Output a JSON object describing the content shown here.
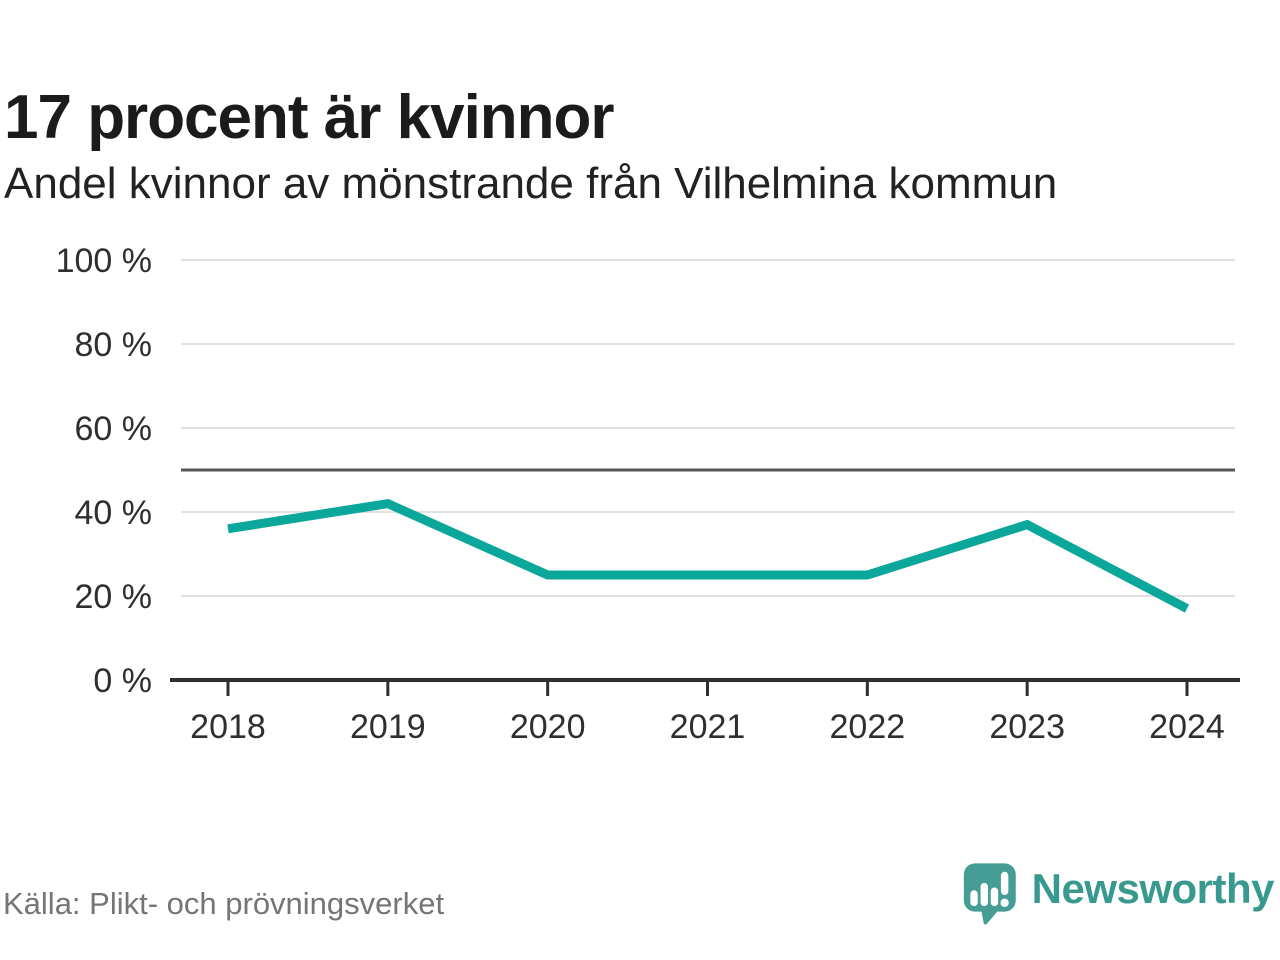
{
  "header": {
    "title": "17 procent är kvinnor",
    "subtitle": "Andel kvinnor av mönstrande från Vilhelmina kommun"
  },
  "footer": {
    "source": "Källa: Plikt- och prövningsverket",
    "brand": "Newsworthy"
  },
  "colors": {
    "line": "#0ba79b",
    "grid": "#e1e1e1",
    "reference_line": "#575757",
    "axis": "#2e2e2e",
    "tick_text": "#2f2f2f",
    "title_text": "#1b1b1b",
    "muted_text": "#757575",
    "brand_teal": "#469d95",
    "wordmark_teal": "#38998f"
  },
  "chart_data": {
    "type": "line",
    "title": "17 procent är kvinnor",
    "subtitle": "Andel kvinnor av mönstrande från Vilhelmina kommun",
    "categories": [
      "2018",
      "2019",
      "2020",
      "2021",
      "2022",
      "2023",
      "2024"
    ],
    "values": [
      36,
      42,
      25,
      25,
      25,
      37,
      17
    ],
    "unit": "%",
    "ylim": [
      0,
      100
    ],
    "yticks": [
      0,
      20,
      40,
      60,
      80,
      100
    ],
    "ytick_suffix": " %",
    "reference_line": 50,
    "grid": "horizontal",
    "legend": "none",
    "line_width": 9,
    "source": "Källa: Plikt- och prövningsverket"
  }
}
